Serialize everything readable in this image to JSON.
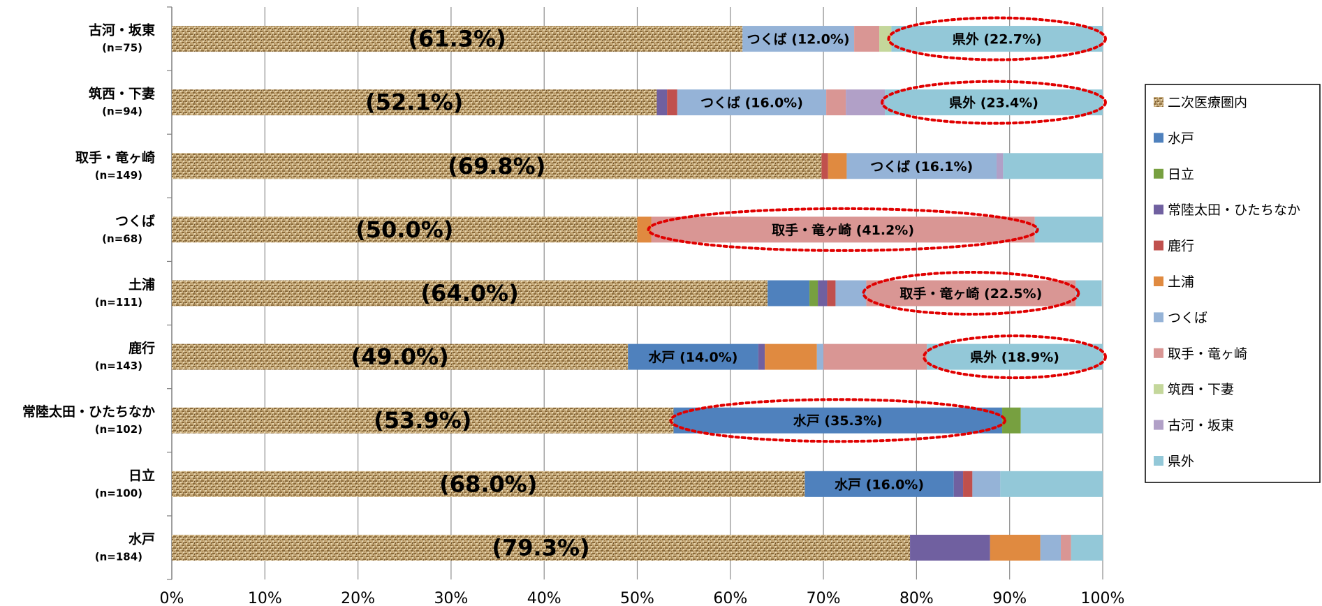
{
  "chart_data": {
    "type": "bar",
    "orientation": "horizontal",
    "stacked": true,
    "percent_stacked": true,
    "categories": [
      {
        "name": "古河・坂東",
        "n": "(n=75)"
      },
      {
        "name": "筑西・下妻",
        "n": "(n=94)"
      },
      {
        "name": "取手・竜ヶ崎",
        "n": "(n=149)"
      },
      {
        "name": "つくば",
        "n": "(n=68)"
      },
      {
        "name": "土浦",
        "n": "(n=111)"
      },
      {
        "name": "鹿行",
        "n": "(n=143)"
      },
      {
        "name": "常陸太田・ひたちなか",
        "n": "(n=102)"
      },
      {
        "name": "日立",
        "n": "(n=100)"
      },
      {
        "name": "水戸",
        "n": "(n=184)"
      }
    ],
    "series": [
      {
        "name": "二次医療圏内",
        "color": "#c8ac7c",
        "pattern": "texture",
        "values": [
          61.3,
          52.1,
          69.8,
          50.0,
          64.0,
          49.0,
          53.9,
          68.0,
          79.3
        ]
      },
      {
        "name": "水戸",
        "color": "#4f81bd",
        "values": [
          0,
          0,
          0,
          0,
          4.5,
          14.0,
          35.3,
          16.0,
          0
        ]
      },
      {
        "name": "日立",
        "color": "#77a040",
        "values": [
          0,
          0,
          0,
          0,
          0.9,
          0,
          2.0,
          0,
          0
        ]
      },
      {
        "name": "常陸太田・ひたちなか",
        "color": "#7060a0",
        "values": [
          0,
          1.1,
          0,
          0,
          1.0,
          0.7,
          0,
          1.0,
          8.6
        ]
      },
      {
        "name": "鹿行",
        "color": "#c0504d",
        "values": [
          0,
          1.1,
          0.7,
          0,
          0.9,
          0,
          0,
          1.0,
          0
        ]
      },
      {
        "name": "土浦",
        "color": "#e08a40",
        "values": [
          0,
          0,
          2.0,
          1.5,
          0,
          5.6,
          0,
          0,
          5.4
        ]
      },
      {
        "name": "つくば",
        "color": "#95b3d7",
        "values": [
          12.0,
          16.0,
          16.1,
          0,
          3.3,
          0.7,
          0,
          3.0,
          2.2
        ]
      },
      {
        "name": "取手・竜ヶ崎",
        "color": "#d99694",
        "values": [
          2.7,
          2.1,
          0,
          41.2,
          22.5,
          11.1,
          0,
          0,
          1.1
        ]
      },
      {
        "name": "筑西・下妻",
        "color": "#c4d79b",
        "values": [
          1.3,
          0,
          0,
          0,
          0,
          0,
          0,
          0,
          0
        ]
      },
      {
        "name": "古河・坂東",
        "color": "#b1a0c7",
        "values": [
          0,
          4.2,
          0.7,
          0,
          0,
          0,
          0,
          0,
          0
        ]
      },
      {
        "name": "県外",
        "color": "#93c8d8",
        "values": [
          22.7,
          23.4,
          10.7,
          7.3,
          2.8,
          18.9,
          8.8,
          11.0,
          3.4
        ]
      }
    ],
    "in_region_labels": [
      "(61.3%)",
      "(52.1%)",
      "(69.8%)",
      "(50.0%)",
      "(64.0%)",
      "(49.0%)",
      "(53.9%)",
      "(68.0%)",
      "(79.3%)"
    ],
    "segment_labels": [
      {
        "row": 0,
        "series": 6,
        "text": "つくば (12.0%)",
        "highlight": false
      },
      {
        "row": 0,
        "series": 10,
        "text": "県外 (22.7%)",
        "highlight": true
      },
      {
        "row": 1,
        "series": 6,
        "text": "つくば (16.0%)",
        "highlight": false
      },
      {
        "row": 1,
        "series": 10,
        "text": "県外 (23.4%)",
        "highlight": true
      },
      {
        "row": 2,
        "series": 6,
        "text": "つくば (16.1%)",
        "highlight": false
      },
      {
        "row": 3,
        "series": 7,
        "text": "取手・竜ヶ崎 (41.2%)",
        "highlight": true
      },
      {
        "row": 4,
        "series": 7,
        "text": "取手・竜ヶ崎 (22.5%)",
        "highlight": true
      },
      {
        "row": 5,
        "series": 1,
        "text": "水戸 (14.0%)",
        "highlight": false
      },
      {
        "row": 5,
        "series": 10,
        "text": "県外 (18.9%)",
        "highlight": true
      },
      {
        "row": 6,
        "series": 1,
        "text": "水戸 (35.3%)",
        "highlight": true
      },
      {
        "row": 7,
        "series": 1,
        "text": "水戸 (16.0%)",
        "highlight": false
      }
    ],
    "x_ticks": [
      "0%",
      "10%",
      "20%",
      "30%",
      "40%",
      "50%",
      "60%",
      "70%",
      "80%",
      "90%",
      "100%"
    ],
    "xlim": [
      0,
      100
    ],
    "grid": true,
    "legend_position": "right",
    "highlight_color": "#e00000"
  }
}
